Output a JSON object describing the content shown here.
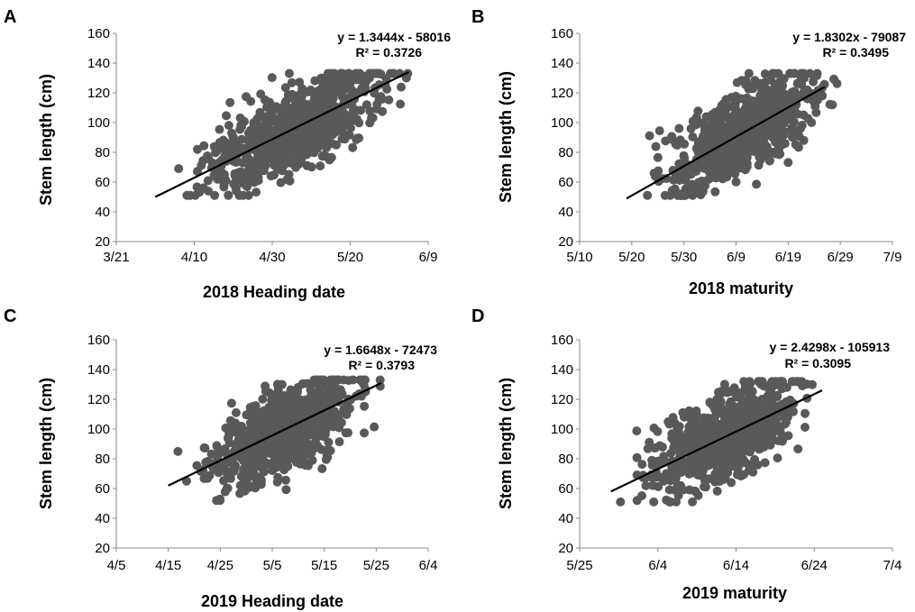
{
  "chart_data": [
    {
      "type": "scatter",
      "panel": "A",
      "xlabel": "2018 Heading date",
      "ylabel": "Stem length (cm)",
      "xticks": [
        "3/21",
        "4/10",
        "4/30",
        "5/20",
        "6/9"
      ],
      "xlim": [
        "2018-03-21",
        "2018-06-09"
      ],
      "ylim": [
        20,
        160
      ],
      "yticks": [
        20,
        40,
        60,
        80,
        100,
        120,
        140,
        160
      ],
      "cloud_x_range": [
        "2018-03-31",
        "2018-06-04"
      ],
      "cloud_y_range": [
        51,
        133
      ],
      "trendline": {
        "x_range": [
          "2018-03-31",
          "2018-06-04"
        ],
        "y_range": [
          50,
          134
        ]
      },
      "equation": "y = 1.3444x - 58016",
      "r2": "R² = 0.3726",
      "grid": false,
      "point_color": "#595959"
    },
    {
      "type": "scatter",
      "panel": "B",
      "xlabel": "2018 maturity",
      "ylabel": "Stem length (cm)",
      "xticks": [
        "5/10",
        "5/20",
        "5/30",
        "6/9",
        "6/19",
        "6/29",
        "7/9"
      ],
      "xlim": [
        "2018-05-10",
        "2018-07-09"
      ],
      "ylim": [
        20,
        160
      ],
      "yticks": [
        20,
        40,
        60,
        80,
        100,
        120,
        140,
        160
      ],
      "cloud_x_range": [
        "2018-05-19",
        "2018-06-29"
      ],
      "cloud_y_range": [
        51,
        133
      ],
      "trendline": {
        "x_range": [
          "2018-05-19",
          "2018-06-26"
        ],
        "y_range": [
          49,
          124
        ]
      },
      "equation": "y = 1.8302x - 79087",
      "r2": "R² = 0.3495",
      "grid": false,
      "point_color": "#595959"
    },
    {
      "type": "scatter",
      "panel": "C",
      "xlabel": "2019 Heading date",
      "ylabel": "Stem length (cm)",
      "xticks": [
        "4/5",
        "4/15",
        "4/25",
        "5/5",
        "5/15",
        "5/25",
        "6/4"
      ],
      "xlim": [
        "2019-04-05",
        "2019-06-04"
      ],
      "ylim": [
        20,
        160
      ],
      "yticks": [
        20,
        40,
        60,
        80,
        100,
        120,
        140,
        160
      ],
      "cloud_x_range": [
        "2019-04-15",
        "2019-05-26"
      ],
      "cloud_y_range": [
        52,
        133
      ],
      "trendline": {
        "x_range": [
          "2019-04-15",
          "2019-05-26"
        ],
        "y_range": [
          62,
          131
        ]
      },
      "equation": "y = 1.6648x - 72473",
      "r2": "R² = 0.3793",
      "grid": false,
      "point_color": "#595959"
    },
    {
      "type": "scatter",
      "panel": "D",
      "xlabel": "2019 maturity",
      "ylabel": "Stem length (cm)",
      "xticks": [
        "5/25",
        "6/4",
        "6/14",
        "6/24",
        "7/4"
      ],
      "xlim": [
        "2019-05-25",
        "2019-07-04"
      ],
      "ylim": [
        20,
        160
      ],
      "yticks": [
        20,
        40,
        60,
        80,
        100,
        120,
        140,
        160
      ],
      "cloud_x_range": [
        "2019-05-29",
        "2019-06-25"
      ],
      "cloud_y_range": [
        51,
        132
      ],
      "trendline": {
        "x_range": [
          "2019-05-29",
          "2019-06-25"
        ],
        "y_range": [
          58,
          126
        ]
      },
      "equation": "y = 2.4298x - 105913",
      "r2": "R² = 0.3095",
      "grid": false,
      "point_color": "#595959"
    }
  ]
}
